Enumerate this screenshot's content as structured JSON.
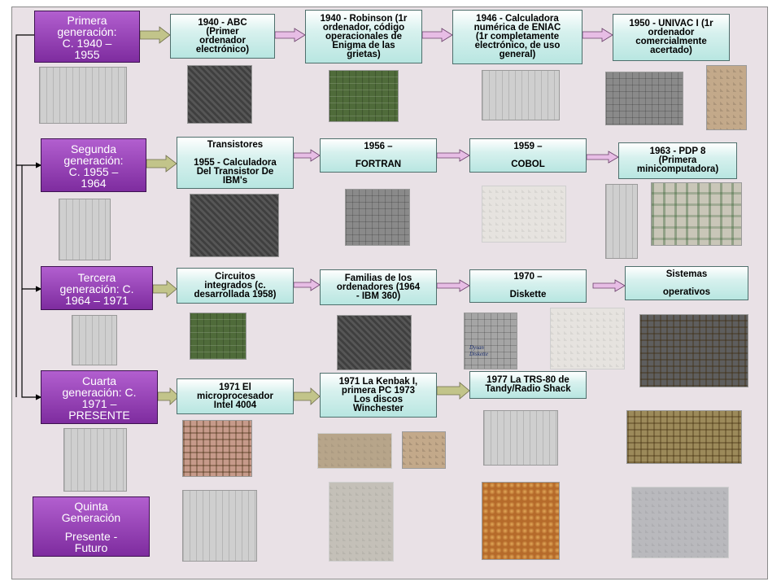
{
  "generations": [
    {
      "id": "g1",
      "label": "Primera\ngeneración:\nC. 1940 –\n1955"
    },
    {
      "id": "g2",
      "label": "Segunda\ngeneración:\nC. 1955 –\n1964"
    },
    {
      "id": "g3",
      "label": "Tercera\ngeneración: C.\n1964 – 1971"
    },
    {
      "id": "g4",
      "label": "Cuarta\ngeneración: C.\n1971 –\nPRESENTE"
    },
    {
      "id": "g5",
      "label_top": "Quinta\nGeneración",
      "label_bottom": "Presente -\nFuturo"
    }
  ],
  "events": {
    "g1": [
      "1940 - ABC\n(Primer\nordenador\nelectrónico)",
      "1940 - Robinson (1r\nordenador, código\noperacionales de\nEnigma de las\ngrietas)",
      "1946 - Calculadora\nnumérica de ENIAC\n(1r completamente\nelectrónico, de uso\ngeneral)",
      "1950 - UNIVAC I (1r\nordenador\ncomercialmente\nacertado)"
    ],
    "g2": [
      "Transistores\n\n1955 - Calculadora\nDel Transistor De\nIBM's",
      "1956 –\n\nFORTRAN",
      "1959 –\n\nCOBOL",
      "1963 - PDP 8\n(Primera\nminicomputadora)"
    ],
    "g3": [
      "Circuitos\nintegrados (c.\ndesarrollada 1958)",
      "Familias de los\nordenadores (1964\n- IBM 360)",
      "1970 –\n\nDiskette",
      "Sistemas\n\noperativos"
    ],
    "g4": [
      "1971 El\nmicroprocesador\nIntel 4004",
      "1971 La Kenbak I,\nprimera PC 1973\nLos discos\nWinchester",
      "1977 La TRS-80 de\nTandy/Radio Shack"
    ]
  },
  "photo_text": {
    "diskette_brand": "Dysan\nDiskette"
  },
  "colors": {
    "generation_box": "#8f3bb3",
    "event_box": "#c8ece8",
    "arrow_green": "#c2c48a",
    "arrow_pink": "#e7bde5",
    "connector": "#000000",
    "background": "#e9e1e6"
  }
}
